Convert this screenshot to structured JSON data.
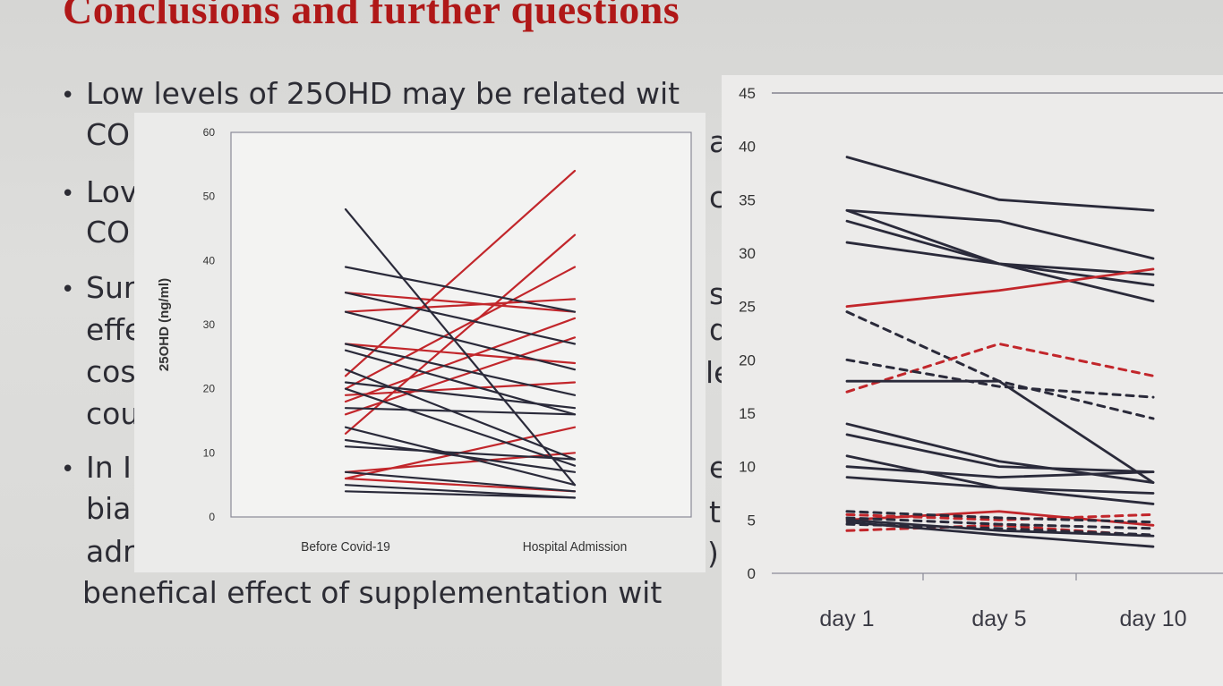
{
  "slide": {
    "title": "Conclusions and further questions",
    "bullets": [
      {
        "line1": "Low levels of 25OHD may be related wit",
        "line2": "CO"
      },
      {
        "line1": "Lov",
        "line2": "CO"
      },
      {
        "line1": "Sur",
        "line2": "effe",
        "line3": "cos",
        "line4": "cou"
      },
      {
        "line1": "In I",
        "line2": "bia",
        "line3": "adr"
      }
    ],
    "bottom_line": "benefical effect of supplementation wit",
    "right_fragments": [
      "a",
      "c",
      "s",
      "d",
      "le",
      "e",
      "t",
      ")"
    ]
  },
  "colors": {
    "title": "#b01818",
    "red_series": "#c2262b",
    "black_series": "#2a2a3a"
  },
  "chart_data": [
    {
      "type": "line",
      "ylabel": "25OHD (ng/ml)",
      "xlabel": "",
      "categories": [
        "Before Covid-19",
        "Hospital Admission"
      ],
      "ylim": [
        0,
        60
      ],
      "yticks": [
        0,
        10,
        20,
        30,
        40,
        50,
        60
      ],
      "grid": false,
      "series": [
        {
          "color": "red",
          "values": [
            22,
            54
          ]
        },
        {
          "color": "red",
          "values": [
            13,
            44
          ]
        },
        {
          "color": "red",
          "values": [
            20,
            39
          ]
        },
        {
          "color": "red",
          "values": [
            32,
            34
          ]
        },
        {
          "color": "red",
          "values": [
            35,
            32
          ]
        },
        {
          "color": "red",
          "values": [
            18,
            31
          ]
        },
        {
          "color": "red",
          "values": [
            16,
            28
          ]
        },
        {
          "color": "red",
          "values": [
            27,
            24
          ]
        },
        {
          "color": "red",
          "values": [
            19,
            21
          ]
        },
        {
          "color": "red",
          "values": [
            6,
            14
          ]
        },
        {
          "color": "red",
          "values": [
            7,
            10
          ]
        },
        {
          "color": "red",
          "values": [
            6,
            4
          ]
        },
        {
          "color": "black",
          "values": [
            48,
            5
          ]
        },
        {
          "color": "black",
          "values": [
            39,
            32
          ]
        },
        {
          "color": "black",
          "values": [
            35,
            27
          ]
        },
        {
          "color": "black",
          "values": [
            32,
            23
          ]
        },
        {
          "color": "black",
          "values": [
            27,
            19
          ]
        },
        {
          "color": "black",
          "values": [
            26,
            16
          ]
        },
        {
          "color": "black",
          "values": [
            23,
            9
          ]
        },
        {
          "color": "black",
          "values": [
            21,
            17
          ]
        },
        {
          "color": "black",
          "values": [
            20,
            8
          ]
        },
        {
          "color": "black",
          "values": [
            17,
            16
          ]
        },
        {
          "color": "black",
          "values": [
            14,
            5
          ]
        },
        {
          "color": "black",
          "values": [
            12,
            7
          ]
        },
        {
          "color": "black",
          "values": [
            11,
            9
          ]
        },
        {
          "color": "black",
          "values": [
            7,
            4
          ]
        },
        {
          "color": "black",
          "values": [
            5,
            3
          ]
        },
        {
          "color": "black",
          "values": [
            4,
            3
          ]
        }
      ]
    },
    {
      "type": "line",
      "ylabel": "",
      "xlabel": "",
      "categories": [
        "day 1",
        "day 5",
        "day 10"
      ],
      "ylim": [
        0,
        45
      ],
      "yticks": [
        0,
        5,
        10,
        15,
        20,
        25,
        30,
        35,
        40,
        45
      ],
      "grid": false,
      "series": [
        {
          "color": "black",
          "style": "solid",
          "values": [
            39,
            35,
            34
          ]
        },
        {
          "color": "black",
          "style": "solid",
          "values": [
            34,
            33,
            29.5
          ]
        },
        {
          "color": "black",
          "style": "solid",
          "values": [
            34,
            29,
            27
          ]
        },
        {
          "color": "black",
          "style": "solid",
          "values": [
            33,
            29,
            25.5
          ]
        },
        {
          "color": "black",
          "style": "solid",
          "values": [
            31,
            29,
            28
          ]
        },
        {
          "color": "red",
          "style": "solid",
          "values": [
            25,
            26.5,
            28.5
          ]
        },
        {
          "color": "black",
          "style": "dashed",
          "values": [
            24.5,
            18,
            14.5
          ]
        },
        {
          "color": "red",
          "style": "dashed",
          "values": [
            17,
            21.5,
            18.5
          ]
        },
        {
          "color": "black",
          "style": "dashed",
          "values": [
            20,
            17.5,
            16.5
          ]
        },
        {
          "color": "black",
          "style": "solid",
          "values": [
            18,
            18,
            8.5
          ]
        },
        {
          "color": "black",
          "style": "solid",
          "values": [
            14,
            10.5,
            8.5
          ]
        },
        {
          "color": "black",
          "style": "solid",
          "values": [
            13,
            10,
            9.5
          ]
        },
        {
          "color": "black",
          "style": "solid",
          "values": [
            11,
            8,
            7.5
          ]
        },
        {
          "color": "black",
          "style": "solid",
          "values": [
            10,
            9,
            9.5
          ]
        },
        {
          "color": "black",
          "style": "solid",
          "values": [
            9,
            8,
            6.5
          ]
        },
        {
          "color": "red",
          "style": "solid",
          "values": [
            5,
            5.8,
            4.5
          ]
        },
        {
          "color": "red",
          "style": "dashed",
          "values": [
            5.5,
            5,
            5.5
          ]
        },
        {
          "color": "red",
          "style": "dashed",
          "values": [
            4,
            4.5,
            3.5
          ]
        },
        {
          "color": "black",
          "style": "dashed",
          "values": [
            5.8,
            5.2,
            4.8
          ]
        },
        {
          "color": "black",
          "style": "dashed",
          "values": [
            5.2,
            4.6,
            4.2
          ]
        },
        {
          "color": "black",
          "style": "dashed",
          "values": [
            4.6,
            4.2,
            3.6
          ]
        },
        {
          "color": "black",
          "style": "solid",
          "values": [
            5,
            4,
            3.5
          ]
        },
        {
          "color": "black",
          "style": "solid",
          "values": [
            4.8,
            3.6,
            2.5
          ]
        }
      ]
    }
  ]
}
